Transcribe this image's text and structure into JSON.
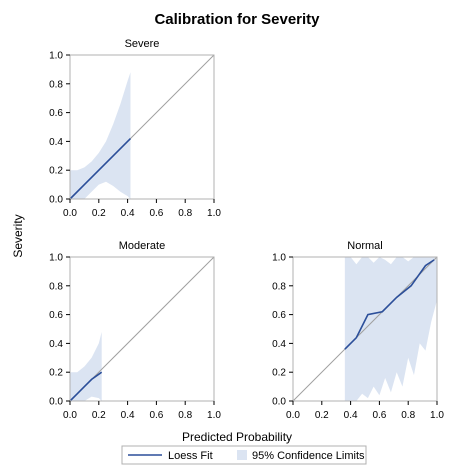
{
  "chart_data": {
    "type": "line",
    "title": "Calibration for Severity",
    "xlabel": "Predicted Probability",
    "ylabel": "Severity",
    "xlim": [
      0,
      1
    ],
    "ylim": [
      0,
      1
    ],
    "x_ticks": [
      "0.0",
      "0.2",
      "0.4",
      "0.6",
      "0.8",
      "1.0"
    ],
    "y_ticks": [
      "0.0",
      "0.2",
      "0.4",
      "0.6",
      "0.8",
      "1.0"
    ],
    "legend": {
      "placement": "bottom",
      "items": [
        {
          "label": "Loess Fit",
          "kind": "line",
          "color": "#2c4f9a"
        },
        {
          "label": "95% Confidence Limits",
          "kind": "band",
          "color": "#dbe4f2"
        }
      ]
    },
    "reference_line": "diagonal",
    "colors": {
      "loess": "#2c4f9a",
      "band": "#dbe4f2",
      "diagonal": "#a0a0a0"
    },
    "panels": [
      {
        "name": "Severe",
        "loess": {
          "x": [
            0.0,
            0.1,
            0.2,
            0.3,
            0.42
          ],
          "y": [
            0.0,
            0.1,
            0.2,
            0.3,
            0.42
          ]
        },
        "band": {
          "x": [
            0.0,
            0.05,
            0.1,
            0.15,
            0.2,
            0.25,
            0.3,
            0.35,
            0.4,
            0.42
          ],
          "upper": [
            0.2,
            0.2,
            0.22,
            0.26,
            0.32,
            0.4,
            0.52,
            0.66,
            0.82,
            0.88
          ],
          "lower": [
            0.0,
            0.0,
            0.0,
            0.05,
            0.1,
            0.12,
            0.09,
            0.05,
            0.02,
            0.0
          ]
        }
      },
      {
        "name": "Moderate",
        "loess": {
          "x": [
            0.0,
            0.05,
            0.1,
            0.15,
            0.22
          ],
          "y": [
            0.0,
            0.05,
            0.1,
            0.15,
            0.2
          ]
        },
        "band": {
          "x": [
            0.0,
            0.05,
            0.1,
            0.15,
            0.2,
            0.22
          ],
          "upper": [
            0.2,
            0.2,
            0.24,
            0.3,
            0.4,
            0.48
          ],
          "lower": [
            0.0,
            0.0,
            0.0,
            0.03,
            0.02,
            0.0
          ]
        }
      },
      {
        "name": "Normal",
        "loess": {
          "x": [
            0.36,
            0.44,
            0.52,
            0.62,
            0.72,
            0.82,
            0.92,
            0.98
          ],
          "y": [
            0.36,
            0.44,
            0.6,
            0.62,
            0.72,
            0.8,
            0.94,
            0.98
          ]
        },
        "band": {
          "x": [
            0.36,
            0.4,
            0.44,
            0.48,
            0.52,
            0.56,
            0.6,
            0.64,
            0.68,
            0.72,
            0.76,
            0.8,
            0.84,
            0.88,
            0.92,
            0.96,
            1.0
          ],
          "upper": [
            1.0,
            1.0,
            0.95,
            1.0,
            1.0,
            0.96,
            1.0,
            0.98,
            0.95,
            1.0,
            1.0,
            0.97,
            1.0,
            1.0,
            1.0,
            1.0,
            1.0
          ],
          "lower": [
            0.0,
            0.0,
            0.0,
            0.05,
            0.02,
            0.1,
            0.04,
            0.16,
            0.06,
            0.2,
            0.1,
            0.3,
            0.18,
            0.4,
            0.35,
            0.55,
            0.7
          ]
        }
      }
    ]
  }
}
